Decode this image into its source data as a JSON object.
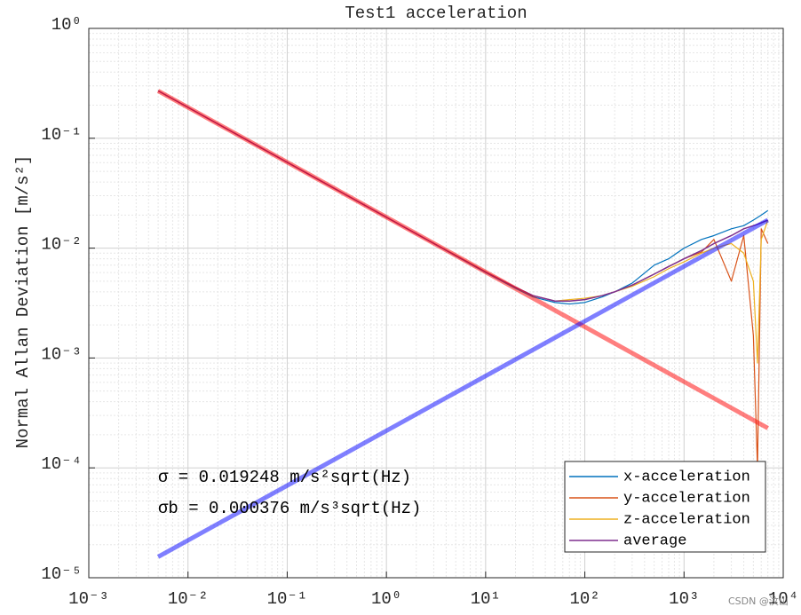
{
  "chart_data": {
    "type": "line",
    "title": "Test1 acceleration",
    "y_label": "Normal Allan Deviation [m/s²]",
    "log_x": true,
    "log_y": true,
    "grid": true,
    "minor_grid": true,
    "legend": "lower right",
    "xlim": [
      0.001,
      10000
    ],
    "ylim": [
      1e-05,
      1
    ],
    "xticks": [
      {
        "value": 0.001,
        "label": "10⁻³"
      },
      {
        "value": 0.01,
        "label": "10⁻²"
      },
      {
        "value": 0.1,
        "label": "10⁻¹"
      },
      {
        "value": 1,
        "label": "10⁰"
      },
      {
        "value": 10,
        "label": "10¹"
      },
      {
        "value": 100,
        "label": "10²"
      },
      {
        "value": 1000,
        "label": "10³"
      },
      {
        "value": 10000,
        "label": "10⁴"
      }
    ],
    "yticks": [
      {
        "value": 1e-05,
        "label": "10⁻⁵"
      },
      {
        "value": 0.0001,
        "label": "10⁻⁴"
      },
      {
        "value": 0.001,
        "label": "10⁻³"
      },
      {
        "value": 0.01,
        "label": "10⁻²"
      },
      {
        "value": 0.1,
        "label": "10⁻¹"
      },
      {
        "value": 1,
        "label": "10⁰"
      }
    ],
    "annotations": [
      "σ = 0.019248 m/s²sqrt(Hz)",
      "σb = 0.000376 m/s³sqrt(Hz)"
    ],
    "watermark": "CSDN @汶山",
    "series": [
      {
        "name": "x-acceleration",
        "color": "#0072bd",
        "line_width": 1.2,
        "opacity": 1,
        "x": [
          0.005,
          0.01,
          0.02,
          0.05,
          0.1,
          0.2,
          0.5,
          1,
          2,
          5,
          10,
          20,
          30,
          50,
          70,
          100,
          150,
          200,
          300,
          500,
          700,
          1000,
          1500,
          2000,
          3000,
          4000,
          5000,
          5500,
          6000,
          7000
        ],
        "values": [
          0.27,
          0.191,
          0.135,
          0.0854,
          0.0604,
          0.0427,
          0.027,
          0.0191,
          0.0135,
          0.0085,
          0.006,
          0.0043,
          0.0036,
          0.0032,
          0.0031,
          0.0032,
          0.0036,
          0.004,
          0.0048,
          0.007,
          0.008,
          0.01,
          0.012,
          0.013,
          0.015,
          0.016,
          0.018,
          0.019,
          0.02,
          0.022
        ]
      },
      {
        "name": "y-acceleration",
        "color": "#d95319",
        "line_width": 1.2,
        "opacity": 1,
        "x": [
          0.005,
          0.01,
          0.02,
          0.05,
          0.1,
          0.2,
          0.5,
          1,
          2,
          5,
          10,
          20,
          30,
          50,
          70,
          100,
          150,
          200,
          300,
          500,
          700,
          1000,
          1500,
          2000,
          3000,
          4000,
          5000,
          5500,
          6000,
          7000
        ],
        "values": [
          0.27,
          0.191,
          0.135,
          0.0854,
          0.0604,
          0.0427,
          0.027,
          0.0191,
          0.0135,
          0.0086,
          0.0061,
          0.0044,
          0.0037,
          0.0033,
          0.0033,
          0.0034,
          0.0037,
          0.004,
          0.0046,
          0.0058,
          0.0068,
          0.008,
          0.0092,
          0.012,
          0.005,
          0.013,
          0.0016,
          0.0001,
          0.015,
          0.011
        ]
      },
      {
        "name": "z-acceleration",
        "color": "#edb120",
        "line_width": 1.2,
        "opacity": 1,
        "x": [
          0.005,
          0.01,
          0.02,
          0.05,
          0.1,
          0.2,
          0.5,
          1,
          2,
          5,
          10,
          20,
          30,
          50,
          70,
          100,
          150,
          200,
          300,
          500,
          700,
          1000,
          1500,
          2000,
          3000,
          4000,
          5000,
          5500,
          6000,
          7000
        ],
        "values": [
          0.27,
          0.191,
          0.135,
          0.0854,
          0.0604,
          0.0427,
          0.027,
          0.0191,
          0.0135,
          0.0086,
          0.0061,
          0.0044,
          0.0037,
          0.0033,
          0.0034,
          0.0035,
          0.0037,
          0.004,
          0.0045,
          0.0055,
          0.0065,
          0.0075,
          0.009,
          0.01,
          0.011,
          0.009,
          0.005,
          0.0009,
          0.012,
          0.018
        ]
      },
      {
        "name": "average",
        "color": "#7e2f8e",
        "line_width": 1.5,
        "opacity": 1,
        "x": [
          0.005,
          0.01,
          0.02,
          0.05,
          0.1,
          0.2,
          0.5,
          1,
          2,
          5,
          10,
          20,
          30,
          50,
          70,
          100,
          150,
          200,
          300,
          500,
          700,
          1000,
          1500,
          2000,
          3000,
          4000,
          5000,
          5500,
          6000,
          7000
        ],
        "values": [
          0.27,
          0.191,
          0.135,
          0.0854,
          0.0604,
          0.0427,
          0.027,
          0.0191,
          0.0135,
          0.00855,
          0.00606,
          0.0044,
          0.0037,
          0.0033,
          0.0033,
          0.0034,
          0.0037,
          0.004,
          0.0046,
          0.0058,
          0.0068,
          0.008,
          0.0095,
          0.011,
          0.013,
          0.015,
          0.016,
          0.0165,
          0.017,
          0.018
        ]
      },
      {
        "color": "#ff0000",
        "line_width": 5,
        "opacity": 0.5,
        "x": [
          0.005,
          7000
        ],
        "values": [
          0.27,
          0.00023
        ]
      },
      {
        "color": "#0000ff",
        "line_width": 5,
        "opacity": 0.5,
        "x": [
          0.005,
          7000
        ],
        "values": [
          1.55e-05,
          0.018
        ]
      }
    ]
  }
}
